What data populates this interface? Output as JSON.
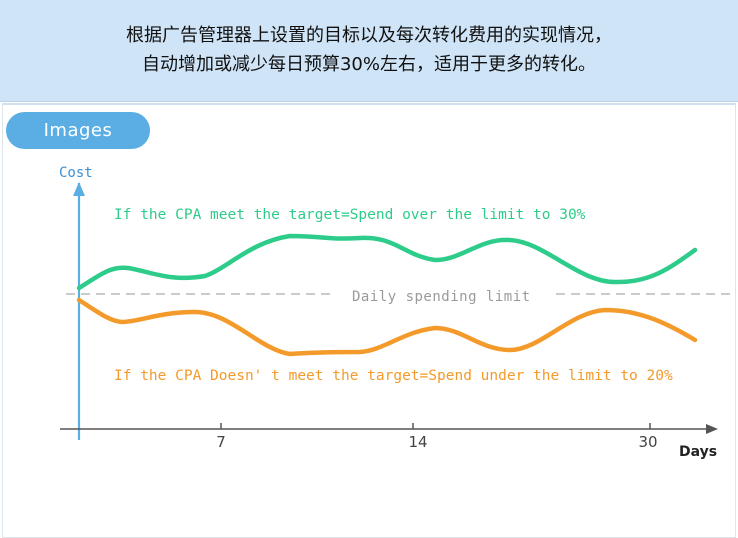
{
  "banner": {
    "line1": "根据广告管理器上设置的目标以及每次转化费用的实现情况，",
    "line2": "自动增加或减少每日预算30%左右，适用于更多的转化。"
  },
  "section": {
    "label": "Images"
  },
  "chart_data": {
    "type": "line",
    "ylabel": "Cost",
    "xlabel": "Days",
    "x_ticks": [
      "7",
      "14",
      "30"
    ],
    "limit_label": "Daily spending limit",
    "series": [
      {
        "name": "If the CPA meet the target=Spend over the limit to 30%",
        "color": "#2ecc8a"
      },
      {
        "name": "If the CPA Doesn' t meet the target=Spend under the limit to 20%",
        "color": "#f39a2a"
      }
    ]
  },
  "colors": {
    "axis": "#5aaee4",
    "green": "#2ecc8a",
    "orange": "#f39a2a",
    "limit": "#b9b9b9",
    "text": "#111111"
  }
}
